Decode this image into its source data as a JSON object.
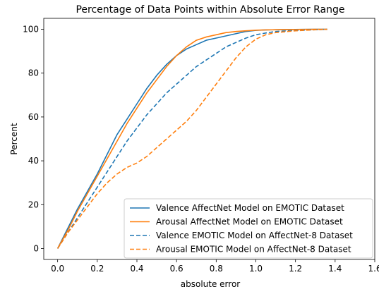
{
  "chart_data": {
    "type": "line",
    "title": "Percentage of Data Points within Absolute Error Range",
    "xlabel": "absolute error",
    "ylabel": "Percent",
    "xlim": [
      -0.07,
      1.6
    ],
    "ylim": [
      -5,
      105
    ],
    "xticks": [
      0.0,
      0.2,
      0.4,
      0.6,
      0.8,
      1.0,
      1.2,
      1.4,
      1.6
    ],
    "xtick_labels": [
      "0.0",
      "0.2",
      "0.4",
      "0.6",
      "0.8",
      "1.0",
      "1.2",
      "1.4",
      "1.6"
    ],
    "yticks": [
      0,
      20,
      40,
      60,
      80,
      100
    ],
    "ytick_labels": [
      "0",
      "20",
      "40",
      "60",
      "80",
      "100"
    ],
    "grid": false,
    "legend_position": "bottom-right",
    "series": [
      {
        "name": "Valence AffectNet Model on EMOTIC Dataset",
        "color": "#1f77b4",
        "dash": "solid",
        "x": [
          0.0,
          0.05,
          0.1,
          0.15,
          0.2,
          0.25,
          0.3,
          0.35,
          0.4,
          0.45,
          0.5,
          0.55,
          0.6,
          0.65,
          0.7,
          0.75,
          0.8,
          0.85,
          0.9,
          0.95,
          1.0,
          1.05,
          1.1,
          1.2,
          1.3,
          1.36
        ],
        "y": [
          0,
          9,
          18,
          26,
          34,
          43,
          52,
          59,
          66,
          73,
          79,
          84,
          88,
          91,
          93,
          95,
          96,
          97,
          98,
          99,
          99.5,
          99.7,
          99.8,
          99.9,
          100,
          100
        ]
      },
      {
        "name": "Arousal AffectNet Model on EMOTIC Dataset",
        "color": "#ff7f0e",
        "dash": "solid",
        "x": [
          0.0,
          0.05,
          0.1,
          0.15,
          0.2,
          0.25,
          0.3,
          0.35,
          0.4,
          0.45,
          0.5,
          0.55,
          0.6,
          0.65,
          0.7,
          0.75,
          0.8,
          0.85,
          0.9,
          0.95,
          1.0,
          1.05,
          1.1,
          1.2,
          1.3,
          1.36
        ],
        "y": [
          0,
          8,
          17,
          25,
          33,
          41,
          49,
          57,
          64,
          71,
          77,
          83,
          88,
          92,
          95,
          96.5,
          97.5,
          98.5,
          99,
          99.3,
          99.6,
          99.7,
          99.8,
          99.9,
          100,
          100
        ]
      },
      {
        "name": "Valence EMOTIC Model on AffectNet-8 Dataset",
        "color": "#1f77b4",
        "dash": "dashed",
        "x": [
          0.0,
          0.05,
          0.1,
          0.15,
          0.2,
          0.25,
          0.3,
          0.35,
          0.4,
          0.45,
          0.5,
          0.55,
          0.6,
          0.65,
          0.7,
          0.75,
          0.8,
          0.85,
          0.9,
          0.95,
          1.0,
          1.05,
          1.1,
          1.2,
          1.3,
          1.36
        ],
        "y": [
          0,
          7,
          14,
          21,
          28,
          35,
          42,
          49,
          55,
          61,
          66,
          71,
          75,
          79,
          83,
          86,
          89,
          92,
          94,
          96,
          97.5,
          98.3,
          99,
          99.5,
          99.8,
          100
        ]
      },
      {
        "name": "Arousal EMOTIC Model on AffectNet-8 Dataset",
        "color": "#ff7f0e",
        "dash": "dashed",
        "x": [
          0.0,
          0.05,
          0.1,
          0.15,
          0.2,
          0.25,
          0.3,
          0.35,
          0.4,
          0.45,
          0.5,
          0.55,
          0.6,
          0.65,
          0.7,
          0.75,
          0.8,
          0.85,
          0.9,
          0.95,
          1.0,
          1.05,
          1.1,
          1.2,
          1.3,
          1.36
        ],
        "y": [
          0,
          7,
          13,
          19,
          25,
          30,
          34,
          37,
          39,
          42,
          46,
          50,
          54,
          58,
          63,
          69,
          75,
          81,
          87,
          92,
          95.5,
          97.5,
          98.5,
          99.3,
          99.8,
          100
        ]
      }
    ]
  }
}
